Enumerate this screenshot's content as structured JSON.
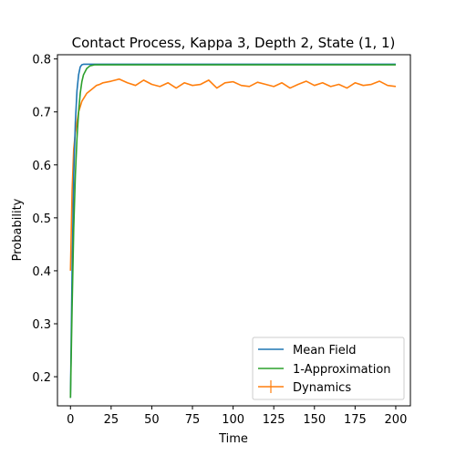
{
  "chart_data": {
    "type": "line",
    "title": "Contact Process, Kappa 3, Depth 2, State (1, 1)",
    "xlabel": "Time",
    "ylabel": "Probability",
    "xlim": [
      -8,
      209
    ],
    "ylim": [
      0.145,
      0.808
    ],
    "xticks": [
      0,
      25,
      50,
      75,
      100,
      125,
      150,
      175,
      200
    ],
    "yticks": [
      0.2,
      0.3,
      0.4,
      0.5,
      0.6,
      0.7,
      0.8
    ],
    "xtick_labels": [
      "0",
      "25",
      "50",
      "75",
      "100",
      "125",
      "150",
      "175",
      "200"
    ],
    "ytick_labels": [
      "0.2",
      "0.3",
      "0.4",
      "0.5",
      "0.6",
      "0.7",
      "0.8"
    ],
    "grid": false,
    "legend_position": "lower-right",
    "series": [
      {
        "name": "Mean Field",
        "color": "#1f77b4",
        "x": [
          0,
          1,
          2,
          3,
          4,
          5,
          6,
          7,
          8,
          10,
          15,
          20,
          50,
          100,
          150,
          200
        ],
        "y": [
          0.16,
          0.4,
          0.58,
          0.68,
          0.74,
          0.77,
          0.785,
          0.789,
          0.79,
          0.79,
          0.79,
          0.79,
          0.79,
          0.79,
          0.79,
          0.79
        ]
      },
      {
        "name": "1-Approximation",
        "color": "#2ca02c",
        "x": [
          0,
          1,
          2,
          3,
          4,
          5,
          6,
          7,
          8,
          10,
          12,
          15,
          20,
          50,
          100,
          150,
          200
        ],
        "y": [
          0.16,
          0.33,
          0.48,
          0.58,
          0.65,
          0.7,
          0.735,
          0.757,
          0.77,
          0.782,
          0.787,
          0.789,
          0.789,
          0.789,
          0.789,
          0.789,
          0.789
        ]
      },
      {
        "name": "Dynamics",
        "color": "#ff7f0e",
        "x": [
          0,
          1,
          2,
          3,
          4,
          5,
          6,
          7,
          8,
          9,
          10,
          12,
          14,
          16,
          18,
          20,
          25,
          30,
          35,
          40,
          45,
          50,
          55,
          60,
          65,
          70,
          75,
          80,
          85,
          90,
          95,
          100,
          105,
          110,
          115,
          120,
          125,
          130,
          135,
          140,
          145,
          150,
          155,
          160,
          165,
          170,
          175,
          180,
          185,
          190,
          195,
          200
        ],
        "y": [
          0.4,
          0.55,
          0.63,
          0.66,
          0.68,
          0.7,
          0.71,
          0.72,
          0.725,
          0.73,
          0.735,
          0.74,
          0.745,
          0.75,
          0.752,
          0.755,
          0.758,
          0.762,
          0.755,
          0.75,
          0.76,
          0.752,
          0.748,
          0.755,
          0.745,
          0.755,
          0.75,
          0.752,
          0.76,
          0.745,
          0.755,
          0.757,
          0.75,
          0.748,
          0.756,
          0.752,
          0.748,
          0.755,
          0.745,
          0.752,
          0.758,
          0.75,
          0.755,
          0.748,
          0.752,
          0.745,
          0.755,
          0.75,
          0.752,
          0.758,
          0.75,
          0.748
        ]
      }
    ]
  }
}
